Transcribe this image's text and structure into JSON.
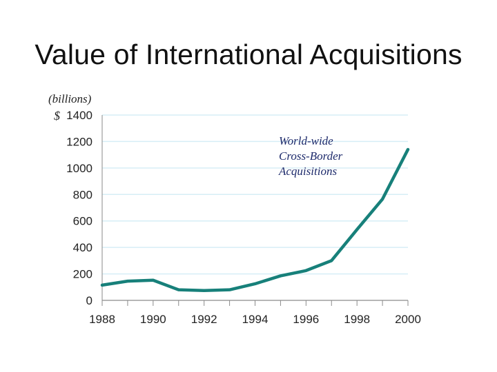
{
  "title": "Value of International Acquisitions",
  "unit_note": "(billions)",
  "unit_prefix": "$",
  "annotation": [
    "World-wide",
    "Cross-Border",
    "Acquisitions"
  ],
  "colors": {
    "line": "#17807a",
    "grid": "#d6eef6",
    "axis": "#8a8a8a"
  },
  "chart_data": {
    "type": "line",
    "title": "Value of International Acquisitions",
    "xlabel": "",
    "ylabel": "(billions) $",
    "x": [
      1988,
      1989,
      1990,
      1991,
      1992,
      1993,
      1994,
      1995,
      1996,
      1997,
      1998,
      1999,
      2000
    ],
    "series": [
      {
        "values": [
          115,
          145,
          152,
          80,
          74,
          80,
          125,
          185,
          225,
          300,
          535,
          765,
          1140
        ]
      }
    ],
    "xlim": [
      1988,
      2000
    ],
    "ylim": [
      0,
      1400
    ],
    "x_ticks": [
      1988,
      1990,
      1992,
      1994,
      1996,
      1998,
      2000
    ],
    "y_ticks": [
      0,
      200,
      400,
      600,
      800,
      1000,
      1200,
      1400
    ],
    "annotations": [
      "World-wide Cross-Border Acquisitions"
    ],
    "grid": true,
    "legend": "none"
  }
}
